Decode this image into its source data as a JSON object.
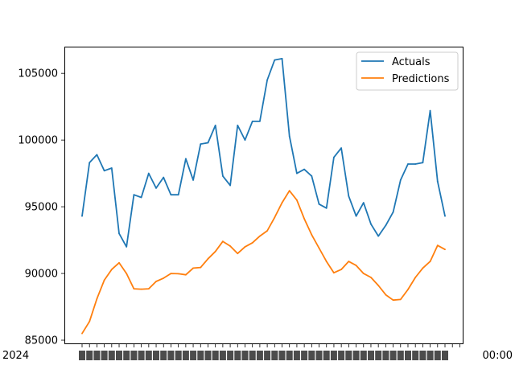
{
  "chart_data": {
    "type": "line",
    "title": "",
    "xlabel": "",
    "ylabel": "",
    "ylim": [
      84700,
      107000
    ],
    "yticks": [
      85000,
      90000,
      95000,
      100000,
      105000
    ],
    "ytick_labels": [
      "85000",
      "90000",
      "95000",
      "100000",
      "105000"
    ],
    "x_tick_label_note": "x-axis tick labels are overlapping date strings and are unreadable",
    "x_label_first": "2024",
    "x_label_last": "00:00",
    "x_count": 50,
    "legend_position": "upper right",
    "grid": false,
    "series": [
      {
        "name": "Actuals",
        "color": "#1f77b4",
        "values": [
          94300,
          98300,
          98900,
          97700,
          97900,
          93000,
          92000,
          95900,
          95700,
          97500,
          96400,
          97200,
          95900,
          95900,
          98600,
          97000,
          99700,
          99800,
          101100,
          97300,
          96600,
          101100,
          100000,
          101400,
          101400,
          104500,
          106000,
          106100,
          100300,
          97500,
          97800,
          97300,
          95200,
          94900,
          98700,
          99400,
          95800,
          94300,
          95300,
          93700,
          92800,
          93600,
          94600,
          97000,
          98200,
          98200,
          98300,
          102200,
          96900,
          94300
        ]
      },
      {
        "name": "Predictions",
        "color": "#ff7f0e",
        "values": [
          85500,
          86400,
          88100,
          89500,
          90300,
          90800,
          90000,
          88850,
          88820,
          88850,
          89400,
          89650,
          90000,
          89980,
          89900,
          90400,
          90450,
          91100,
          91650,
          92400,
          92050,
          91500,
          92000,
          92300,
          92800,
          93200,
          94200,
          95300,
          96200,
          95500,
          94100,
          92900,
          91900,
          90900,
          90050,
          90300,
          90900,
          90600,
          90000,
          89700,
          89100,
          88400,
          88000,
          88050,
          88800,
          89700,
          90400,
          90900,
          92100,
          91800
        ]
      }
    ]
  }
}
